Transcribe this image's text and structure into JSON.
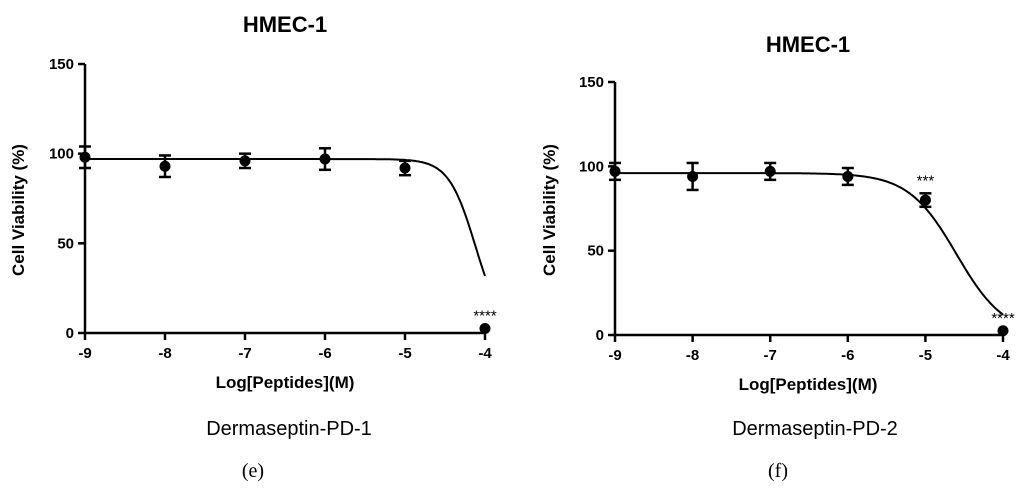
{
  "chart_data": [
    {
      "type": "scatter",
      "panel_label": "(e)",
      "title": "HMEC-1",
      "subtitle": "Dermaseptin-PD-1",
      "xlabel": "Log[Peptides](M)",
      "ylabel": "Cell Viability (%)",
      "xlim": [
        -9,
        -4
      ],
      "ylim": [
        0,
        150
      ],
      "xticks": [
        -9,
        -8,
        -7,
        -6,
        -5,
        -4
      ],
      "yticks": [
        0,
        50,
        100,
        150
      ],
      "series": [
        {
          "x": [
            -9,
            -8,
            -7,
            -6,
            -5,
            -4
          ],
          "y": [
            98,
            93,
            96,
            97,
            92,
            2.5
          ],
          "err": [
            6,
            6,
            4,
            6,
            4,
            0.5
          ]
        }
      ],
      "fit": {
        "top": 97,
        "bottom": 0,
        "logEC50": -4.12,
        "hill": 2.6
      },
      "annotations": [
        {
          "x": -4,
          "text": "****"
        }
      ]
    },
    {
      "type": "scatter",
      "panel_label": "(f)",
      "title": "HMEC-1",
      "subtitle": "Dermaseptin-PD-2",
      "xlabel": "Log[Peptides](M)",
      "ylabel": "Cell Viability (%)",
      "xlim": [
        -9,
        -4
      ],
      "ylim": [
        0,
        150
      ],
      "xticks": [
        -9,
        -8,
        -7,
        -6,
        -5,
        -4
      ],
      "yticks": [
        0,
        50,
        100,
        150
      ],
      "series": [
        {
          "x": [
            -9,
            -8,
            -7,
            -6,
            -5,
            -4
          ],
          "y": [
            97,
            94,
            97,
            94,
            80,
            2.5
          ],
          "err": [
            5,
            8,
            5,
            5,
            4,
            0.5
          ]
        }
      ],
      "fit": {
        "top": 96,
        "bottom": 0,
        "logEC50": -4.6,
        "hill": 1.4
      },
      "annotations": [
        {
          "x": -5,
          "text": "***"
        },
        {
          "x": -4,
          "text": "****"
        }
      ]
    }
  ]
}
